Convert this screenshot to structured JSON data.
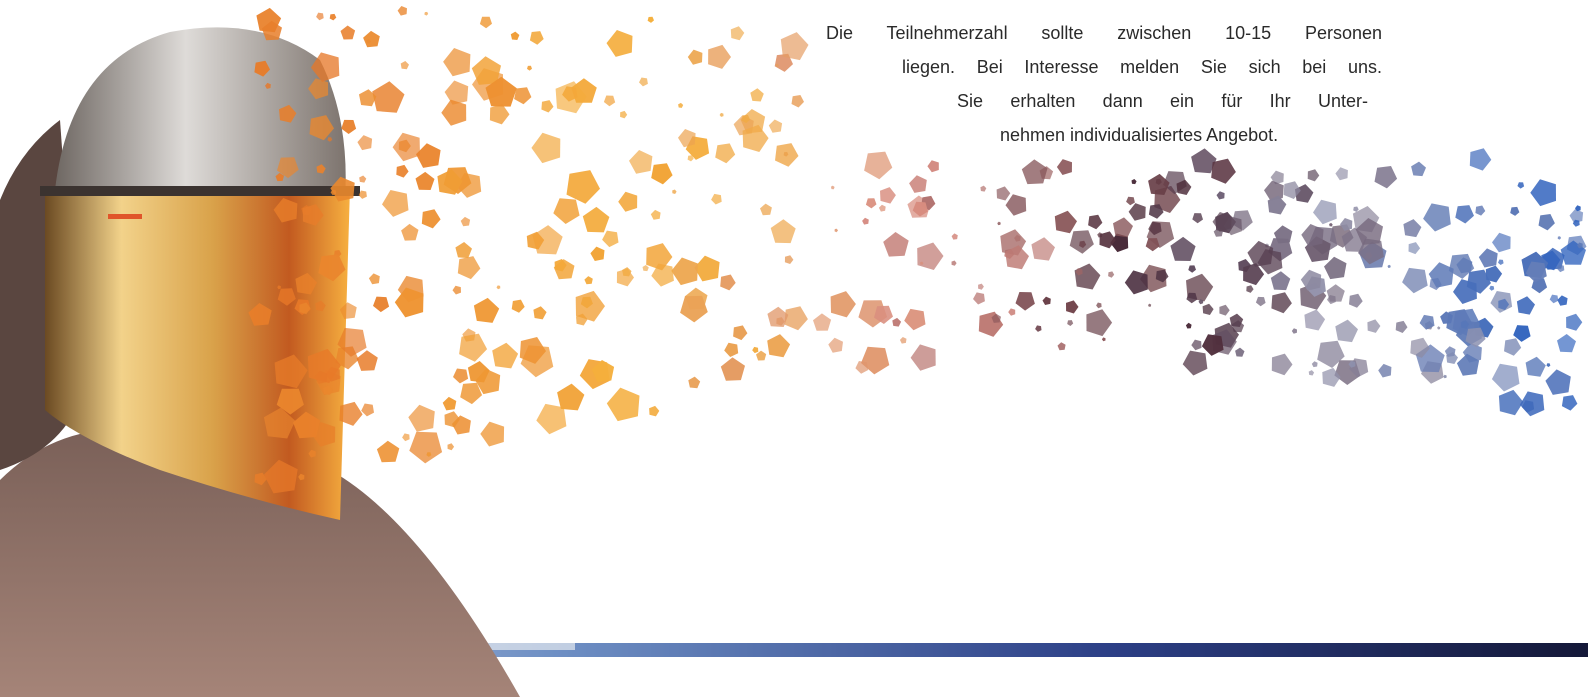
{
  "text": {
    "lines": [
      "Die Teilnehmerzahl sollte zwischen 10-15 Personen",
      "liegen. Bei Interesse melden Sie sich bei uns.",
      "Sie erhalten dann ein für Ihr Unter-",
      "nehmen individualisiertes Angebot."
    ]
  }
}
